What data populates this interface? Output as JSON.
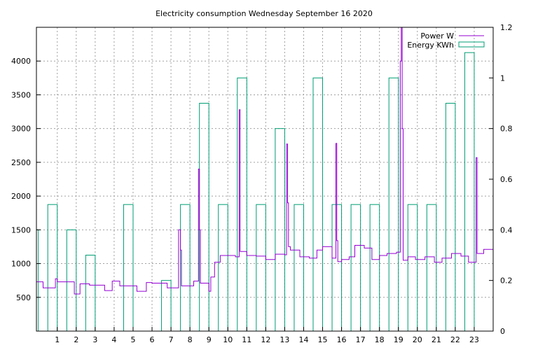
{
  "chart_data": {
    "type": "line",
    "title": "Electricity consumption Wednesday September 16 2020",
    "xlabel": "",
    "ylabel": "",
    "xlim": [
      -0.1,
      24.0
    ],
    "ylim": [
      0,
      4500
    ],
    "y2lim": [
      0,
      1.2
    ],
    "grid": true,
    "legend_position": "top-right",
    "x_ticks": [
      "1",
      "2",
      "3",
      "4",
      "5",
      "6",
      "7",
      "8",
      "9",
      "10",
      "11",
      "12",
      "13",
      "14",
      "15",
      "16",
      "17",
      "18",
      "19",
      "20",
      "21",
      "22",
      "23"
    ],
    "y_ticks": [
      "500",
      "1000",
      "1500",
      "2000",
      "2500",
      "3000",
      "3500",
      "4000"
    ],
    "y2_ticks": [
      "0",
      "0.2",
      "0.4",
      "0.6",
      "0.8",
      "1",
      "1.2"
    ],
    "series": [
      {
        "name": "Power W",
        "axis": "left",
        "color": "#9400d3",
        "points": [
          [
            -0.1,
            730
          ],
          [
            0.25,
            730
          ],
          [
            0.25,
            640
          ],
          [
            0.9,
            640
          ],
          [
            0.9,
            775
          ],
          [
            1.0,
            775
          ],
          [
            1.0,
            730
          ],
          [
            1.9,
            730
          ],
          [
            1.9,
            550
          ],
          [
            2.2,
            550
          ],
          [
            2.2,
            700
          ],
          [
            2.7,
            700
          ],
          [
            2.7,
            680
          ],
          [
            3.5,
            680
          ],
          [
            3.5,
            600
          ],
          [
            3.9,
            600
          ],
          [
            3.9,
            740
          ],
          [
            4.3,
            740
          ],
          [
            4.3,
            670
          ],
          [
            5.2,
            670
          ],
          [
            5.2,
            590
          ],
          [
            5.7,
            590
          ],
          [
            5.7,
            720
          ],
          [
            6.0,
            720
          ],
          [
            6.0,
            710
          ],
          [
            6.8,
            710
          ],
          [
            6.8,
            640
          ],
          [
            7.4,
            640
          ],
          [
            7.4,
            1500
          ],
          [
            7.5,
            1500
          ],
          [
            7.5,
            1200
          ],
          [
            7.55,
            1200
          ],
          [
            7.55,
            670
          ],
          [
            8.2,
            670
          ],
          [
            8.2,
            740
          ],
          [
            8.45,
            740
          ],
          [
            8.45,
            2400
          ],
          [
            8.5,
            2400
          ],
          [
            8.5,
            1500
          ],
          [
            8.55,
            1500
          ],
          [
            8.55,
            710
          ],
          [
            9.0,
            710
          ],
          [
            9.0,
            590
          ],
          [
            9.1,
            590
          ],
          [
            9.1,
            800
          ],
          [
            9.3,
            800
          ],
          [
            9.3,
            1020
          ],
          [
            9.6,
            1020
          ],
          [
            9.6,
            1120
          ],
          [
            10.4,
            1120
          ],
          [
            10.4,
            1100
          ],
          [
            10.6,
            1100
          ],
          [
            10.6,
            3280
          ],
          [
            10.65,
            3280
          ],
          [
            10.65,
            1180
          ],
          [
            11.0,
            1180
          ],
          [
            11.0,
            1120
          ],
          [
            11.5,
            1120
          ],
          [
            11.5,
            1110
          ],
          [
            12.0,
            1110
          ],
          [
            12.0,
            1060
          ],
          [
            12.5,
            1060
          ],
          [
            12.5,
            1140
          ],
          [
            13.0,
            1140
          ],
          [
            13.0,
            1130
          ],
          [
            13.1,
            1130
          ],
          [
            13.1,
            2770
          ],
          [
            13.15,
            2770
          ],
          [
            13.15,
            1900
          ],
          [
            13.2,
            1900
          ],
          [
            13.2,
            1250
          ],
          [
            13.3,
            1250
          ],
          [
            13.3,
            1200
          ],
          [
            13.8,
            1200
          ],
          [
            13.8,
            1100
          ],
          [
            14.3,
            1100
          ],
          [
            14.3,
            1080
          ],
          [
            14.7,
            1080
          ],
          [
            14.7,
            1200
          ],
          [
            15.0,
            1200
          ],
          [
            15.0,
            1250
          ],
          [
            15.5,
            1250
          ],
          [
            15.5,
            1080
          ],
          [
            15.7,
            1080
          ],
          [
            15.7,
            2780
          ],
          [
            15.75,
            2780
          ],
          [
            15.75,
            1340
          ],
          [
            15.8,
            1340
          ],
          [
            15.8,
            1030
          ],
          [
            16.0,
            1030
          ],
          [
            16.0,
            1060
          ],
          [
            16.4,
            1060
          ],
          [
            16.4,
            1100
          ],
          [
            16.7,
            1100
          ],
          [
            16.7,
            1270
          ],
          [
            17.2,
            1270
          ],
          [
            17.2,
            1230
          ],
          [
            17.6,
            1230
          ],
          [
            17.6,
            1060
          ],
          [
            18.0,
            1060
          ],
          [
            18.0,
            1120
          ],
          [
            18.4,
            1120
          ],
          [
            18.4,
            1150
          ],
          [
            18.9,
            1150
          ],
          [
            18.9,
            1170
          ],
          [
            19.1,
            1170
          ],
          [
            19.1,
            4000
          ],
          [
            19.15,
            4000
          ],
          [
            19.15,
            4500
          ],
          [
            19.2,
            4500
          ],
          [
            19.2,
            3000
          ],
          [
            19.25,
            3000
          ],
          [
            19.25,
            1050
          ],
          [
            19.5,
            1050
          ],
          [
            19.5,
            1100
          ],
          [
            19.9,
            1100
          ],
          [
            19.9,
            1060
          ],
          [
            20.4,
            1060
          ],
          [
            20.4,
            1100
          ],
          [
            20.9,
            1100
          ],
          [
            20.9,
            1020
          ],
          [
            21.3,
            1020
          ],
          [
            21.3,
            1080
          ],
          [
            21.8,
            1080
          ],
          [
            21.8,
            1150
          ],
          [
            22.3,
            1150
          ],
          [
            22.3,
            1110
          ],
          [
            22.7,
            1110
          ],
          [
            22.7,
            1020
          ],
          [
            23.1,
            1020
          ],
          [
            23.1,
            2570
          ],
          [
            23.15,
            2570
          ],
          [
            23.15,
            1150
          ],
          [
            23.5,
            1150
          ],
          [
            23.5,
            1210
          ],
          [
            24.0,
            1210
          ]
        ]
      },
      {
        "name": "Energy KWh",
        "axis": "right",
        "color": "#009e73",
        "bars": [
          {
            "hour": 0,
            "value": 0.4
          },
          {
            "hour": 1,
            "value": 0.5
          },
          {
            "hour": 2,
            "value": 0.4
          },
          {
            "hour": 3,
            "value": 0.3
          },
          {
            "hour": 4,
            "value": 0.0
          },
          {
            "hour": 5,
            "value": 0.5
          },
          {
            "hour": 6,
            "value": 0.0
          },
          {
            "hour": 7,
            "value": 0.2
          },
          {
            "hour": 8,
            "value": 0.5
          },
          {
            "hour": 9,
            "value": 0.9
          },
          {
            "hour": 10,
            "value": 0.5
          },
          {
            "hour": 11,
            "value": 1.0
          },
          {
            "hour": 12,
            "value": 0.5
          },
          {
            "hour": 13,
            "value": 0.8
          },
          {
            "hour": 14,
            "value": 0.5
          },
          {
            "hour": 15,
            "value": 1.0
          },
          {
            "hour": 16,
            "value": 0.5
          },
          {
            "hour": 17,
            "value": 0.5
          },
          {
            "hour": 18,
            "value": 0.5
          },
          {
            "hour": 19,
            "value": 1.0
          },
          {
            "hour": 20,
            "value": 0.5
          },
          {
            "hour": 21,
            "value": 0.5
          },
          {
            "hour": 22,
            "value": 0.9
          },
          {
            "hour": 23,
            "value": 1.1
          }
        ]
      }
    ]
  }
}
